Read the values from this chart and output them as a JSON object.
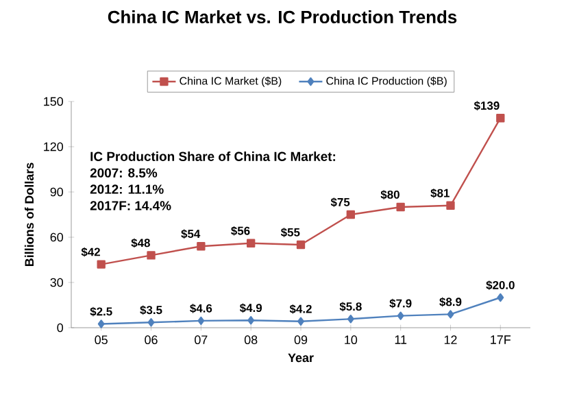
{
  "chart_data": {
    "type": "line",
    "title": "China IC Market vs. IC Production Trends",
    "xlabel": "Year",
    "ylabel": "Billions of Dollars",
    "categories": [
      "05",
      "06",
      "07",
      "08",
      "09",
      "10",
      "11",
      "12",
      "17F"
    ],
    "series": [
      {
        "name": "China IC Market ($B)",
        "color": "#c0504d",
        "marker": "square",
        "values": [
          42,
          48,
          54,
          56,
          55,
          75,
          80,
          81,
          139
        ],
        "value_labels": [
          "$42",
          "$48",
          "$54",
          "$56",
          "$55",
          "$75",
          "$80",
          "$81",
          "$139"
        ]
      },
      {
        "name": "China IC Production ($B)",
        "color": "#4f81bd",
        "marker": "diamond",
        "values": [
          2.5,
          3.5,
          4.6,
          4.9,
          4.2,
          5.8,
          7.9,
          8.9,
          20.0
        ],
        "value_labels": [
          "$2.5",
          "$3.5",
          "$4.6",
          "$4.9",
          "$4.2",
          "$5.8",
          "$7.9",
          "$8.9",
          "$20.0"
        ]
      }
    ],
    "ylim": [
      0,
      150
    ],
    "yticks": [
      0,
      30,
      60,
      90,
      120,
      150
    ],
    "legend": "top",
    "line_style": "solid",
    "annotations": [
      "IC Production Share of China IC Market:",
      "2007: 8.5%",
      "2012: 11.1%",
      "2017F: 14.4%"
    ]
  }
}
